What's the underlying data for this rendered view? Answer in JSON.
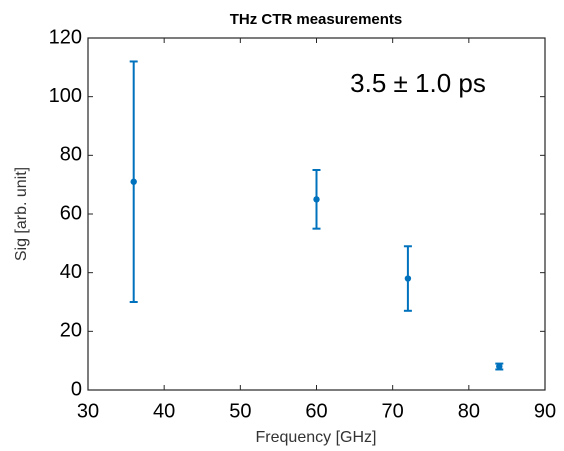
{
  "chart_data": {
    "type": "scatter",
    "title": "THz CTR measurements",
    "xlabel": "Frequency [GHz]",
    "ylabel": "Sig [arb. unit]",
    "annotation": "3.5 ± 1.0 ps",
    "series": [
      {
        "color": "#0072bd",
        "x": [
          36,
          60,
          72,
          84
        ],
        "values": [
          71,
          65,
          38,
          8
        ],
        "error": [
          41,
          10,
          11,
          1
        ]
      }
    ],
    "xlim": [
      30,
      90
    ],
    "xticks": [
      30,
      40,
      50,
      60,
      70,
      80,
      90
    ],
    "ylim": [
      0,
      120
    ],
    "yticks": [
      0,
      20,
      40,
      60,
      80,
      100,
      120
    ],
    "grid": false
  }
}
